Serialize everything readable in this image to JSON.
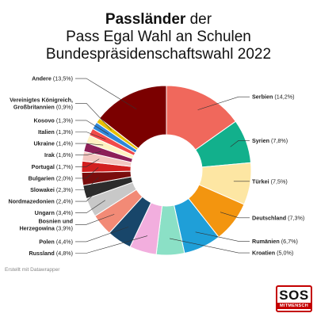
{
  "header": {
    "title_bold": "Passländer",
    "title_rest": " der",
    "line2": "Pass Egal Wahl an Schulen",
    "line3": "Bundespräsidenschaftswahl 2022"
  },
  "credit": "Erstellt mit Datawrapper",
  "logo": {
    "big": "SOS",
    "small": "MITMENSCH"
  },
  "chart_data": {
    "type": "pie",
    "variant": "donut",
    "unit": "%",
    "slices": [
      {
        "name": "Serbien",
        "value": 14.2,
        "value_label": "(14,2%)",
        "color": "#f0685c"
      },
      {
        "name": "Syrien",
        "value": 7.8,
        "value_label": "(7,8%)",
        "color": "#12b08c"
      },
      {
        "name": "Türkei",
        "value": 7.5,
        "value_label": "(7,5%)",
        "color": "#fde6a3"
      },
      {
        "name": "Deutschland",
        "value": 7.3,
        "value_label": "(7,3%)",
        "color": "#f3950f"
      },
      {
        "name": "Rumänien",
        "value": 6.7,
        "value_label": "(6,7%)",
        "color": "#1f9fd8"
      },
      {
        "name": "Kroatien",
        "value": 5.0,
        "value_label": "(5,0%)",
        "color": "#8be0c6"
      },
      {
        "name": "Russland",
        "value": 4.8,
        "value_label": "(4,8%)",
        "color": "#f2aede"
      },
      {
        "name": "Polen",
        "value": 4.4,
        "value_label": "(4,4%)",
        "color": "#18466a"
      },
      {
        "name": "Bosnien und Herzegowina",
        "name_lines": [
          "Bosnien und",
          "Herzegowina"
        ],
        "value": 3.9,
        "value_label": "(3,9%)",
        "color": "#f28a76"
      },
      {
        "name": "Ungarn",
        "value": 3.4,
        "value_label": "(3,4%)",
        "color": "#c8c8c8"
      },
      {
        "name": "Nordmazedonien",
        "value": 2.4,
        "value_label": "(2,4%)",
        "color": "#2c2c2c"
      },
      {
        "name": "Slowakei",
        "value": 2.3,
        "value_label": "(2,3%)",
        "color": "#7a0d0d"
      },
      {
        "name": "Bulgarien",
        "value": 2.0,
        "value_label": "(2,0%)",
        "color": "#d21f1f"
      },
      {
        "name": "Portugal",
        "value": 1.7,
        "value_label": "(1,7%)",
        "color": "#f3c6c0"
      },
      {
        "name": "Irak",
        "value": 1.6,
        "value_label": "(1,6%)",
        "color": "#8d1f58"
      },
      {
        "name": "Ukraine",
        "value": 1.4,
        "value_label": "(1,4%)",
        "color": "#fff2c2"
      },
      {
        "name": "Italien",
        "value": 1.3,
        "value_label": "(1,3%)",
        "color": "#f04a4a"
      },
      {
        "name": "Kosovo",
        "value": 1.3,
        "value_label": "(1,3%)",
        "color": "#2f86d9"
      },
      {
        "name": "Vereinigtes Königreich, Großbritannien",
        "name_lines": [
          "Vereinigtes Königreich,",
          "Großbritannien"
        ],
        "value": 0.9,
        "value_label": "(0,9%)",
        "color": "#e8c000"
      },
      {
        "name": "Andere",
        "value": 13.5,
        "value_label": "(13,5%)",
        "color": "#7b0000"
      }
    ]
  }
}
